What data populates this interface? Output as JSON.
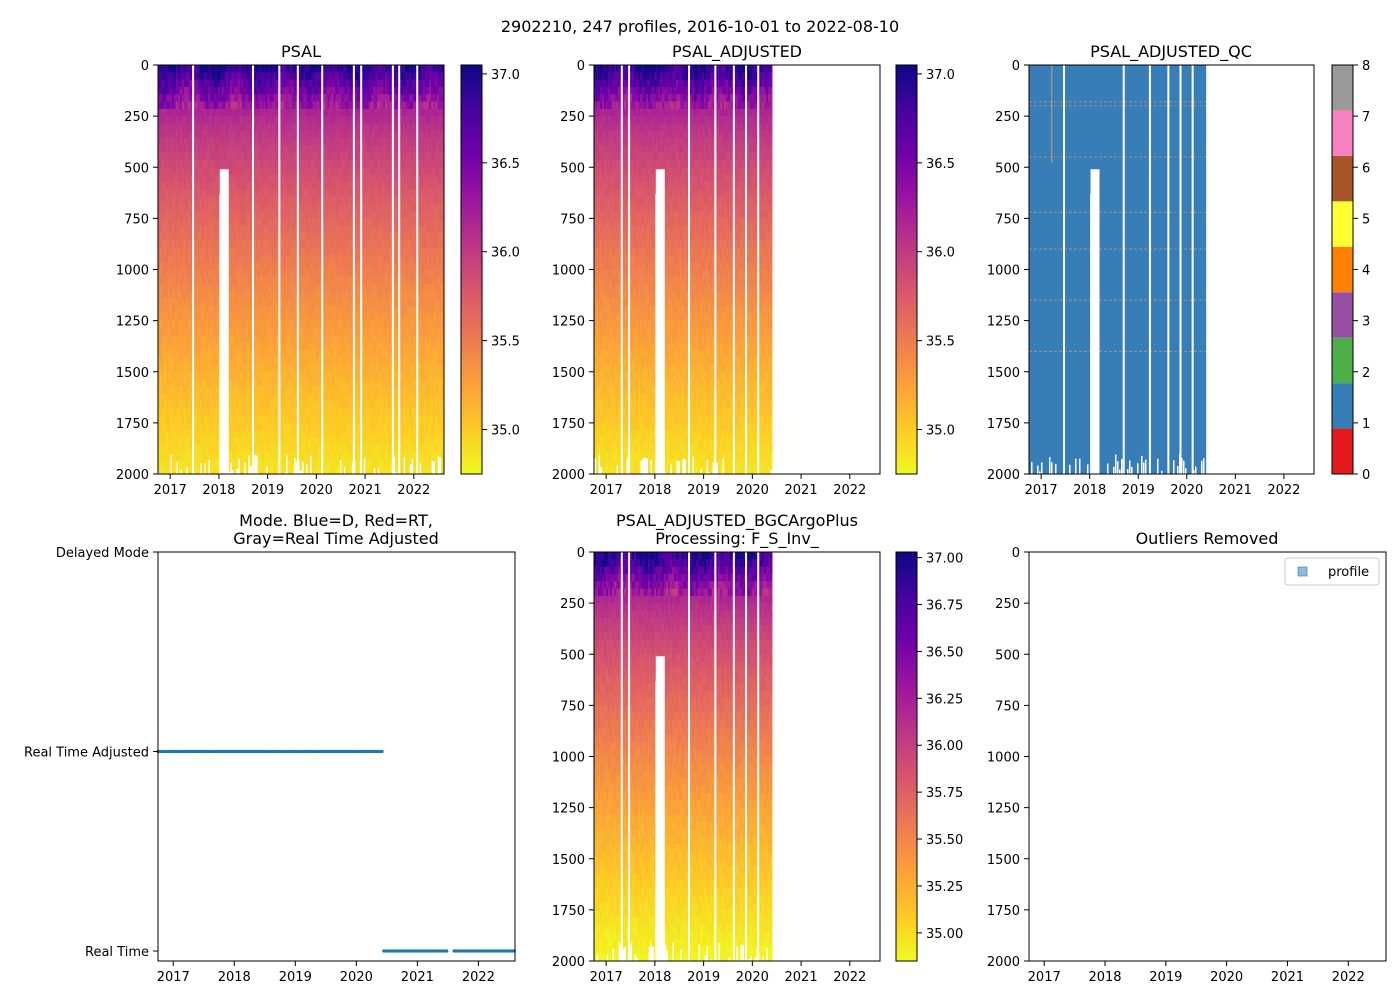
{
  "suptitle": "2902210, 247 profiles, 2016-10-01 to 2022-08-10",
  "colors": {
    "plasma": [
      "#f0f921",
      "#fdca26",
      "#fb9f3a",
      "#ed7953",
      "#d8576b",
      "#bd3786",
      "#9c179e",
      "#7201a8",
      "#46039f",
      "#0d0887"
    ],
    "qc": [
      "#e41a1c",
      "#377eb8",
      "#4daf4a",
      "#984ea3",
      "#ff7f00",
      "#ffff33",
      "#a65628",
      "#f781bf",
      "#999999"
    ],
    "series": "#1f77b4",
    "qc_flag_line": "#c8a070"
  },
  "chart_data": [
    {
      "type": "heatmap",
      "title": "PSAL",
      "x_range": [
        2016.75,
        2022.62
      ],
      "y_range": [
        0,
        2000
      ],
      "y_inverted": true,
      "data_x_range": [
        2016.75,
        2022.6
      ],
      "x_ticks": [
        "2017",
        "2018",
        "2019",
        "2020",
        "2021",
        "2022"
      ],
      "x_tick_values": [
        2017,
        2018,
        2019,
        2020,
        2021,
        2022
      ],
      "y_ticks": [
        "0",
        "250",
        "500",
        "750",
        "1000",
        "1250",
        "1500",
        "1750",
        "2000"
      ],
      "y_tick_values": [
        0,
        250,
        500,
        750,
        1000,
        1250,
        1500,
        1750,
        2000
      ],
      "colorbar": {
        "min": 34.75,
        "max": 37.05,
        "ticks": [
          "35.0",
          "35.5",
          "36.0",
          "36.5",
          "37.0"
        ],
        "tick_values": [
          35.0,
          35.5,
          36.0,
          36.5,
          37.0
        ]
      },
      "profile_gaps": [
        2017.45,
        2018.68,
        2019.22,
        2019.6,
        2020.1,
        2020.75,
        2020.9,
        2021.55,
        2021.68,
        2022.05
      ],
      "shallow_profiles": [
        {
          "x": 2018.1,
          "max_depth": 510
        },
        {
          "x": 2018.05,
          "max_depth": 630
        }
      ]
    },
    {
      "type": "heatmap",
      "title": "PSAL_ADJUSTED",
      "x_range": [
        2016.75,
        2022.62
      ],
      "y_range": [
        0,
        2000
      ],
      "y_inverted": true,
      "data_x_range": [
        2016.75,
        2020.4
      ],
      "x_ticks": [
        "2017",
        "2018",
        "2019",
        "2020",
        "2021",
        "2022"
      ],
      "x_tick_values": [
        2017,
        2018,
        2019,
        2020,
        2021,
        2022
      ],
      "y_ticks": [
        "0",
        "250",
        "500",
        "750",
        "1000",
        "1250",
        "1500",
        "1750",
        "2000"
      ],
      "y_tick_values": [
        0,
        250,
        500,
        750,
        1000,
        1250,
        1500,
        1750,
        2000
      ],
      "colorbar": {
        "min": 34.75,
        "max": 37.05,
        "ticks": [
          "35.0",
          "35.5",
          "36.0",
          "36.5",
          "37.0"
        ],
        "tick_values": [
          35.0,
          35.5,
          36.0,
          36.5,
          37.0
        ]
      },
      "profile_gaps": [
        2017.3,
        2017.45,
        2018.68,
        2019.22,
        2019.6,
        2019.85,
        2020.1
      ],
      "shallow_profiles": [
        {
          "x": 2018.1,
          "max_depth": 510
        },
        {
          "x": 2018.05,
          "max_depth": 630
        }
      ]
    },
    {
      "type": "heatmap",
      "title": "PSAL_ADJUSTED_QC",
      "x_range": [
        2016.75,
        2022.62
      ],
      "y_range": [
        0,
        2000
      ],
      "y_inverted": true,
      "data_x_range": [
        2016.75,
        2020.4
      ],
      "dominant_flag": 1,
      "x_ticks": [
        "2017",
        "2018",
        "2019",
        "2020",
        "2021",
        "2022"
      ],
      "x_tick_values": [
        2017,
        2018,
        2019,
        2020,
        2021,
        2022
      ],
      "y_ticks": [
        "0",
        "250",
        "500",
        "750",
        "1000",
        "1250",
        "1500",
        "1750",
        "2000"
      ],
      "y_tick_values": [
        0,
        250,
        500,
        750,
        1000,
        1250,
        1500,
        1750,
        2000
      ],
      "colorbar": {
        "min": 0,
        "max": 8,
        "discrete": true,
        "ticks": [
          "0",
          "1",
          "2",
          "3",
          "4",
          "5",
          "6",
          "7",
          "8"
        ],
        "tick_values": [
          0,
          1,
          2,
          3,
          4,
          5,
          6,
          7,
          8
        ]
      },
      "profile_gaps": [
        2017.45,
        2018.68,
        2019.22,
        2019.6,
        2019.85,
        2020.1
      ],
      "shallow_profiles": [
        {
          "x": 2018.1,
          "max_depth": 510
        },
        {
          "x": 2018.05,
          "max_depth": 630
        }
      ],
      "flag_depths": [
        180,
        200,
        450,
        720,
        900,
        1150,
        1400
      ]
    },
    {
      "type": "scatter",
      "title": "Mode. Blue=D, Red=RT,\nGray=Real Time Adjusted",
      "title_lines": [
        "Mode. Blue=D, Red=RT,",
        "Gray=Real Time Adjusted"
      ],
      "x_range": [
        2016.75,
        2022.6
      ],
      "y_categories": [
        "Delayed Mode",
        "Real Time Adjusted",
        "Real Time"
      ],
      "x_ticks": [
        "2017",
        "2018",
        "2019",
        "2020",
        "2021",
        "2022"
      ],
      "x_tick_values": [
        2017,
        2018,
        2019,
        2020,
        2021,
        2022
      ],
      "series": [
        {
          "name": "Real Time Adjusted",
          "mode": "Real Time Adjusted",
          "x_start": 2016.75,
          "x_end": 2020.43
        },
        {
          "name": "Real Time",
          "mode": "Real Time",
          "x_start": 2020.45,
          "x_end": 2022.6
        }
      ]
    },
    {
      "type": "heatmap",
      "title": "PSAL_ADJUSTED_BGCArgoPlus",
      "title_lines": [
        "PSAL_ADJUSTED_BGCArgoPlus",
        "Processing: F_S_Inv_"
      ],
      "x_range": [
        2016.75,
        2022.62
      ],
      "y_range": [
        0,
        2000
      ],
      "y_inverted": true,
      "data_x_range": [
        2016.75,
        2020.4
      ],
      "x_ticks": [
        "2017",
        "2018",
        "2019",
        "2020",
        "2021",
        "2022"
      ],
      "x_tick_values": [
        2017,
        2018,
        2019,
        2020,
        2021,
        2022
      ],
      "y_ticks": [
        "0",
        "250",
        "500",
        "750",
        "1000",
        "1250",
        "1500",
        "1750",
        "2000"
      ],
      "y_tick_values": [
        0,
        250,
        500,
        750,
        1000,
        1250,
        1500,
        1750,
        2000
      ],
      "colorbar": {
        "min": 34.85,
        "max": 37.03,
        "ticks": [
          "35.00",
          "35.25",
          "35.50",
          "35.75",
          "36.00",
          "36.25",
          "36.50",
          "36.75",
          "37.00"
        ],
        "tick_values": [
          35.0,
          35.25,
          35.5,
          35.75,
          36.0,
          36.25,
          36.5,
          36.75,
          37.0
        ]
      },
      "profile_gaps": [
        2017.3,
        2017.45,
        2018.68,
        2019.22,
        2019.6,
        2019.85,
        2020.1
      ],
      "shallow_profiles": [
        {
          "x": 2018.1,
          "max_depth": 510
        },
        {
          "x": 2018.05,
          "max_depth": 630
        }
      ]
    },
    {
      "type": "scatter",
      "title": "Outliers Removed",
      "x_range": [
        2016.75,
        2022.62
      ],
      "y_range": [
        0,
        2000
      ],
      "y_inverted": true,
      "x_ticks": [
        "2017",
        "2018",
        "2019",
        "2020",
        "2021",
        "2022"
      ],
      "x_tick_values": [
        2017,
        2018,
        2019,
        2020,
        2021,
        2022
      ],
      "y_ticks": [
        "0",
        "250",
        "500",
        "750",
        "1000",
        "1250",
        "1500",
        "1750",
        "2000"
      ],
      "y_tick_values": [
        0,
        250,
        500,
        750,
        1000,
        1250,
        1500,
        1750,
        2000
      ],
      "legend": {
        "entries": [
          "profile"
        ],
        "placement": "upper right"
      },
      "series": []
    }
  ]
}
